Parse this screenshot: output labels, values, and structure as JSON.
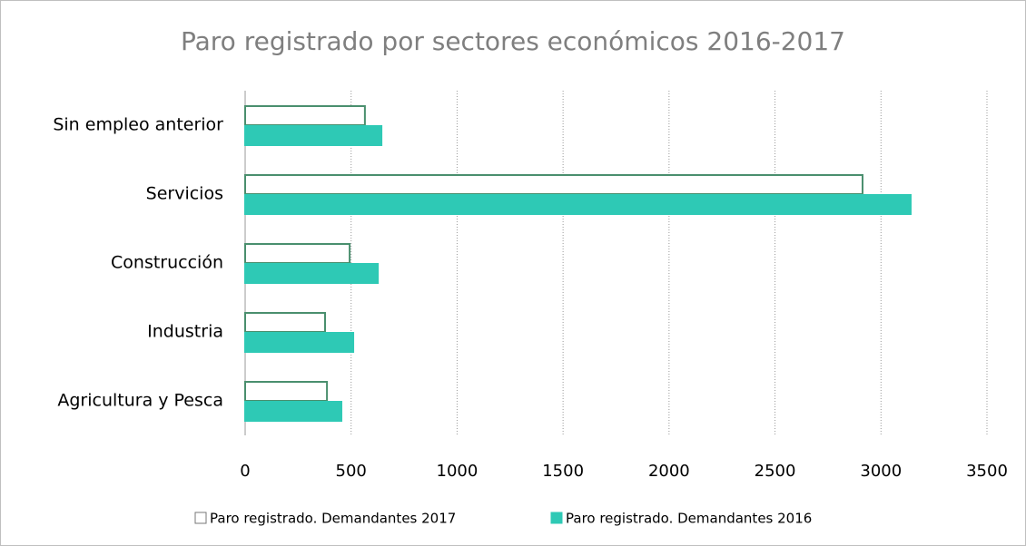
{
  "chart_data": {
    "type": "hbar",
    "title": "Paro registrado por sectores económicos 2016-2017",
    "categories": [
      "Sin empleo anterior",
      "Servicios",
      "Construcción",
      "Industria",
      "Agricultura y Pesca"
    ],
    "series": [
      {
        "name": "Paro registrado. Demandantes 2017",
        "color": "#ffffff",
        "edgecolor": "#4a8f6e",
        "values": [
          565,
          2913,
          493,
          377,
          386
        ]
      },
      {
        "name": "Paro registrado. Demandantes 2016",
        "color": "#2ec9b5",
        "edgecolor": "#2ec9b5",
        "values": [
          643,
          3140,
          626,
          510,
          454
        ]
      }
    ],
    "xlim": [
      0,
      3500
    ],
    "xticks": [
      0,
      500,
      1000,
      1500,
      2000,
      2500,
      3000,
      3500
    ],
    "grid": true,
    "legend": "bottom"
  }
}
